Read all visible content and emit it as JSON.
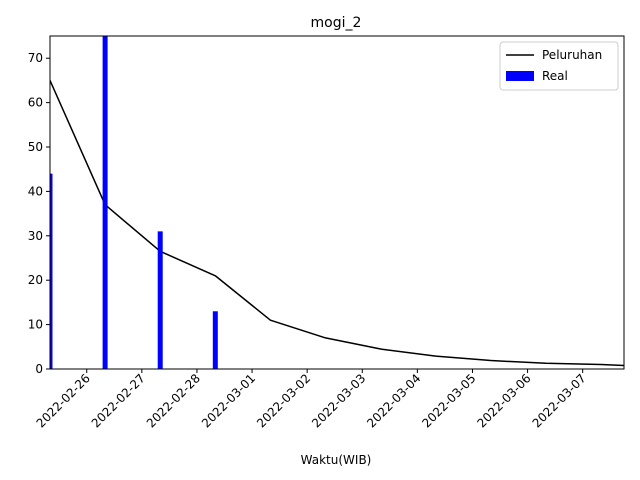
{
  "chart_data": {
    "type": "bar+line",
    "title": "mogi_2",
    "xlabel": "Waktu(WIB)",
    "ylabel": "",
    "x_axis": "date",
    "xlim": [
      "2022-02-25 08:00",
      "2022-03-07 18:00"
    ],
    "ylim": [
      0,
      75
    ],
    "x_ticks": [
      "2022-02-26",
      "2022-02-27",
      "2022-02-28",
      "2022-03-01",
      "2022-03-02",
      "2022-03-03",
      "2022-03-04",
      "2022-03-05",
      "2022-03-06",
      "2022-03-07"
    ],
    "y_ticks": [
      0,
      10,
      20,
      30,
      40,
      50,
      60,
      70
    ],
    "grid": false,
    "legend": "top-right",
    "series": [
      {
        "name": "Peluruhan",
        "kind": "line",
        "color": "#000000",
        "points": [
          {
            "x": "2022-02-25 08:00",
            "y": 65
          },
          {
            "x": "2022-02-26 08:00",
            "y": 37
          },
          {
            "x": "2022-02-27 08:00",
            "y": 26.5
          },
          {
            "x": "2022-02-28 08:00",
            "y": 21
          },
          {
            "x": "2022-03-01 08:00",
            "y": 11
          },
          {
            "x": "2022-03-02 08:00",
            "y": 7
          },
          {
            "x": "2022-03-03 08:00",
            "y": 4.5
          },
          {
            "x": "2022-03-04 08:00",
            "y": 2.9
          },
          {
            "x": "2022-03-05 08:00",
            "y": 1.9
          },
          {
            "x": "2022-03-06 08:00",
            "y": 1.3
          },
          {
            "x": "2022-03-07 08:00",
            "y": 1.0
          },
          {
            "x": "2022-03-07 18:00",
            "y": 0.8
          }
        ]
      },
      {
        "name": "Real",
        "kind": "bar",
        "color": "#0000ff",
        "points": [
          {
            "x": "2022-02-25 08:00",
            "y": 44
          },
          {
            "x": "2022-02-26 08:00",
            "y": 75
          },
          {
            "x": "2022-02-27 08:00",
            "y": 31
          },
          {
            "x": "2022-02-28 08:00",
            "y": 13
          }
        ]
      }
    ]
  }
}
